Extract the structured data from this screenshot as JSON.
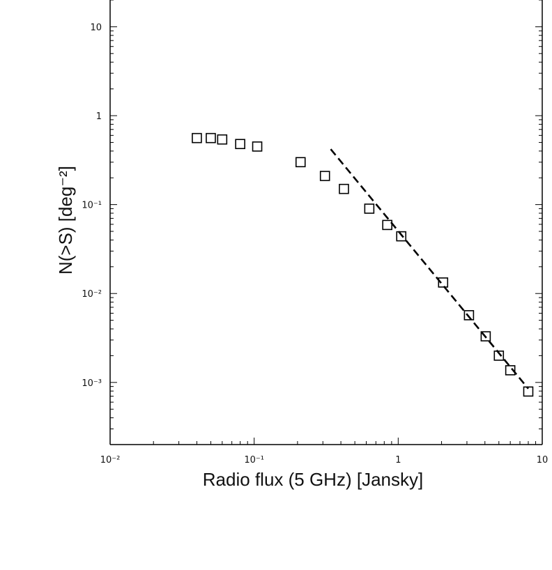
{
  "chart_data": {
    "type": "scatter",
    "title": "",
    "xlabel": "Radio flux (5 GHz) [Jansky]",
    "ylabel": "N(>S) [deg⁻²]",
    "x_scale": "log",
    "y_scale": "log",
    "xlim": [
      0.01,
      10
    ],
    "ylim": [
      0.0002,
      20
    ],
    "grid": false,
    "x_ticks": [
      {
        "value": 0.01,
        "label": "10⁻²"
      },
      {
        "value": 0.1,
        "label": "10⁻¹"
      },
      {
        "value": 1,
        "label": "1"
      },
      {
        "value": 10,
        "label": "10"
      }
    ],
    "y_ticks": [
      {
        "value": 0.001,
        "label": "10⁻³"
      },
      {
        "value": 0.01,
        "label": "10⁻²"
      },
      {
        "value": 0.1,
        "label": "10⁻¹"
      },
      {
        "value": 1,
        "label": "1"
      },
      {
        "value": 10,
        "label": "10"
      }
    ],
    "series": [
      {
        "type": "scatter",
        "marker": "open-square",
        "x": [
          0.04,
          0.05,
          0.06,
          0.08,
          0.105,
          0.21,
          0.31,
          0.42,
          0.63,
          0.84,
          1.05,
          2.05,
          3.1,
          4.05,
          5.0,
          6.0,
          8.0
        ],
        "y": [
          0.56,
          0.56,
          0.54,
          0.48,
          0.45,
          0.3,
          0.21,
          0.15,
          0.09,
          0.059,
          0.044,
          0.0133,
          0.0057,
          0.0033,
          0.002,
          0.00137,
          0.00079
        ]
      },
      {
        "type": "line",
        "style": "dashed",
        "x": [
          0.34,
          8.0
        ],
        "y": [
          0.42,
          0.00085
        ]
      }
    ]
  }
}
